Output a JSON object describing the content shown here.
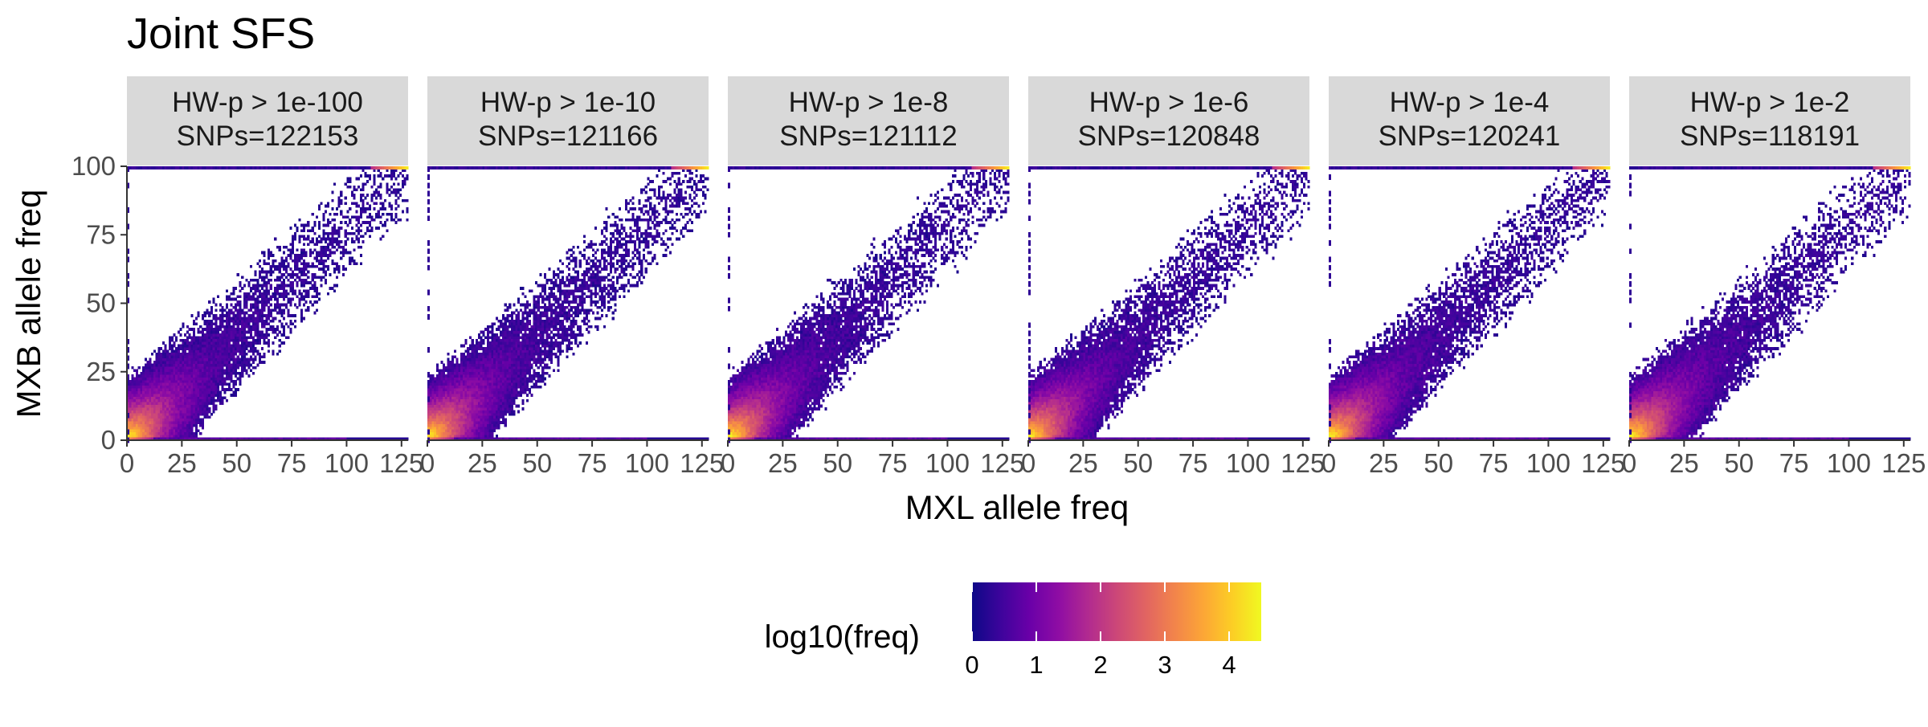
{
  "chart_data": {
    "type": "heatmap",
    "title": "Joint SFS",
    "xlabel": "MXL allele freq",
    "ylabel": "MXB allele freq",
    "xlim": [
      0,
      128
    ],
    "ylim": [
      0,
      100
    ],
    "x_ticks": [
      0,
      25,
      50,
      75,
      100,
      125
    ],
    "y_ticks": [
      0,
      25,
      50,
      75,
      100
    ],
    "grid": false,
    "panels": [
      {
        "strip": [
          "HW-p > 1e-100",
          "SNPs=122153"
        ],
        "snps": 122153
      },
      {
        "strip": [
          "HW-p > 1e-10",
          "SNPs=121166"
        ],
        "snps": 121166
      },
      {
        "strip": [
          "HW-p > 1e-8",
          "SNPs=121112"
        ],
        "snps": 121112
      },
      {
        "strip": [
          "HW-p > 1e-6",
          "SNPs=120848"
        ],
        "snps": 120848
      },
      {
        "strip": [
          "HW-p > 1e-4",
          "SNPs=120241"
        ],
        "snps": 120241
      },
      {
        "strip": [
          "HW-p > 1e-2",
          "SNPs=118191"
        ],
        "snps": 118191
      }
    ],
    "fill": {
      "label": "log10(freq)",
      "range": [
        0,
        4.5
      ],
      "breaks": [
        0,
        1,
        2,
        3,
        4
      ],
      "palette": [
        "#0d0887",
        "#3e049c",
        "#6a00a8",
        "#8f0da4",
        "#b12a90",
        "#cc4778",
        "#e16462",
        "#f2844b",
        "#fca636",
        "#fcce25",
        "#f0f921"
      ]
    },
    "legend_position": "bottom"
  }
}
